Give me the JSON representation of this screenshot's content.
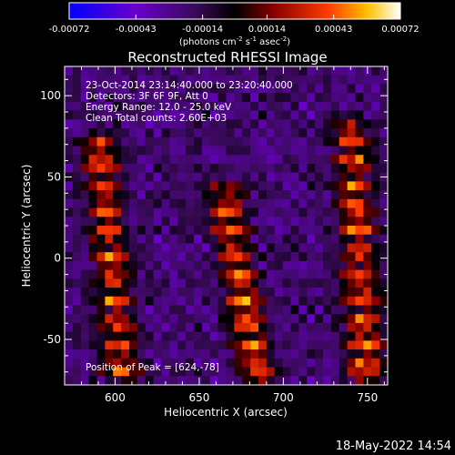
{
  "chart_data": {
    "type": "heatmap",
    "title": "Reconstructed RHESSI Image",
    "xlabel": "Heliocentric X (arcsec)",
    "ylabel": "Heliocentric Y (arcsec)",
    "xlim": [
      570,
      762
    ],
    "ylim": [
      -78,
      118
    ],
    "x_ticks": [
      600,
      650,
      700,
      750
    ],
    "y_ticks": [
      -50,
      0,
      50,
      100
    ],
    "grid_shape": [
      40,
      36
    ],
    "colorbar": {
      "label_parts": [
        "(photons cm",
        "-2",
        " s",
        "-1",
        " asec",
        "-2",
        ")"
      ],
      "range": [
        -0.00072,
        0.00072
      ],
      "ticks": [
        "-0.00072",
        "-0.00043",
        "-0.00014",
        "0.00014",
        "0.00043",
        "0.00072"
      ],
      "colormap": [
        "#0000ff",
        "#6a00cc",
        "#3a0a5a",
        "#000000",
        "#8a0000",
        "#ff3a00",
        "#ffc000",
        "#ffffff"
      ]
    },
    "annotations": [
      "23-Oct-2014 23:14:40.000 to 23:20:40.000",
      "Detectors: 3F 6F 9F, Att 0",
      "Energy Range: 12.0 - 25.0 keV",
      "Clean     Total counts: 2.60E+03"
    ],
    "peak_label": "Position of Peak = [624,-78]",
    "peak": [
      624,
      -78
    ],
    "bright_ridges": [
      {
        "x_top": 590,
        "x_bottom": 605,
        "y_top": 70,
        "amplitude": 0.00065
      },
      {
        "x_top": 665,
        "x_bottom": 685,
        "y_top": 40,
        "amplitude": 0.0007
      },
      {
        "x_top": 740,
        "x_bottom": 750,
        "y_top": 80,
        "amplitude": 0.0007
      }
    ]
  },
  "footer_timestamp": "18-May-2022 14:54"
}
